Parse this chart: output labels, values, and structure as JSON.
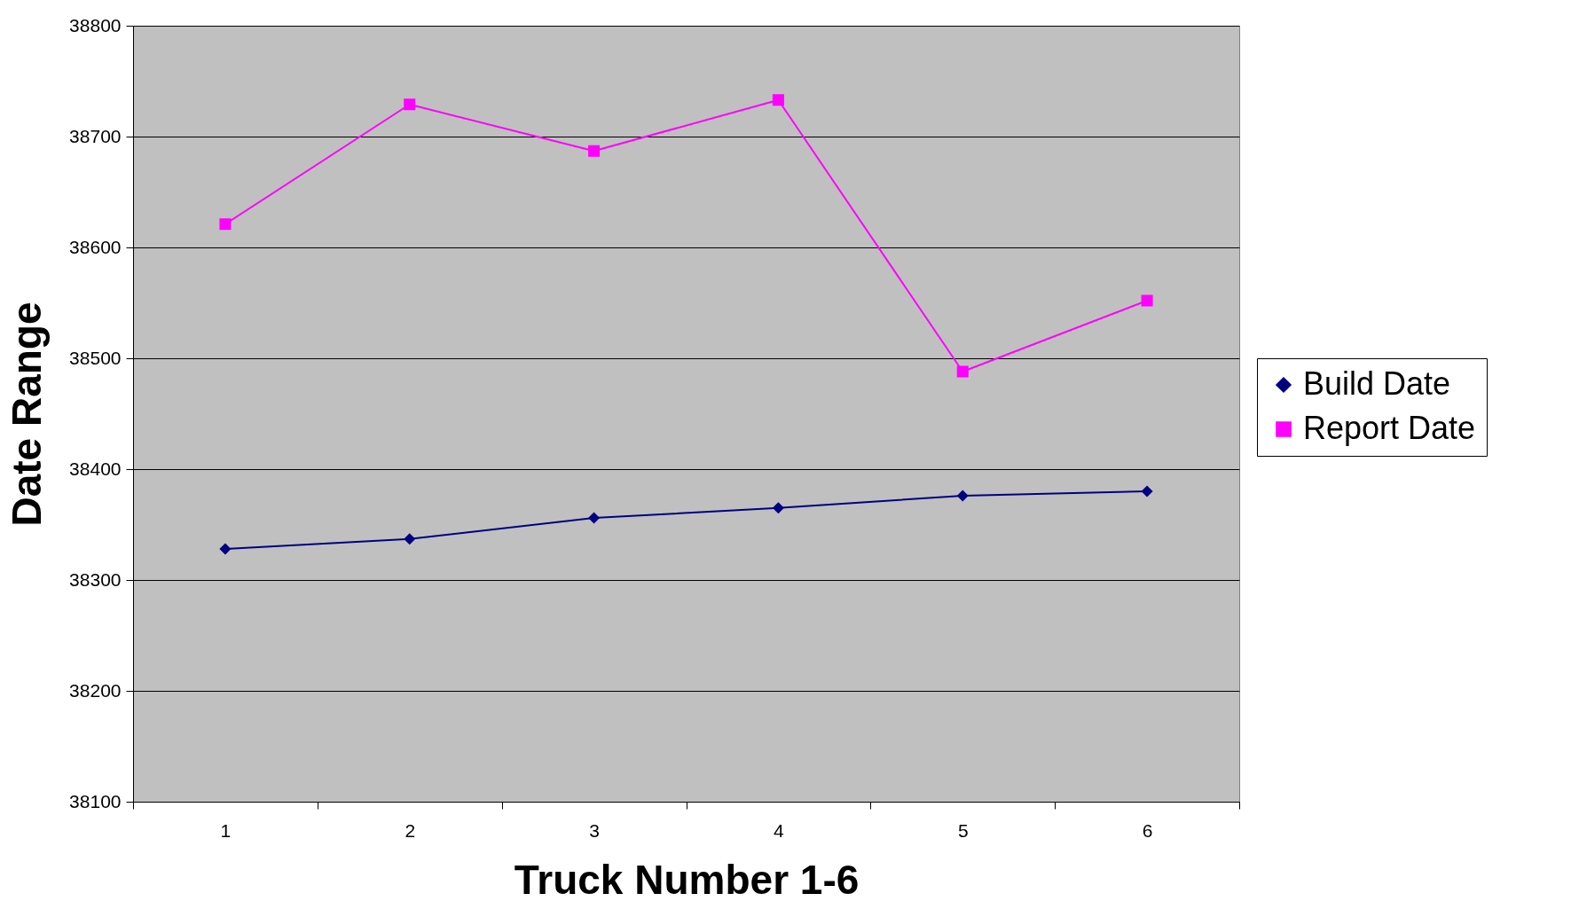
{
  "chart_data": {
    "type": "line",
    "xlabel": "Truck Number 1-6",
    "ylabel": "Date Range",
    "categories": [
      "1",
      "2",
      "3",
      "4",
      "5",
      "6"
    ],
    "series": [
      {
        "name": "Build Date",
        "color": "#000080",
        "marker": "diamond",
        "values": [
          38328,
          38337,
          38356,
          38365,
          38376,
          38380
        ]
      },
      {
        "name": "Report Date",
        "color": "#ff00ff",
        "marker": "square",
        "values": [
          38621,
          38729,
          38687,
          38733,
          38488,
          38552
        ]
      }
    ],
    "ylim": [
      38100,
      38800
    ],
    "yticks": [
      38100,
      38200,
      38300,
      38400,
      38500,
      38600,
      38700,
      38800
    ],
    "grid": "y",
    "legend": "right"
  }
}
